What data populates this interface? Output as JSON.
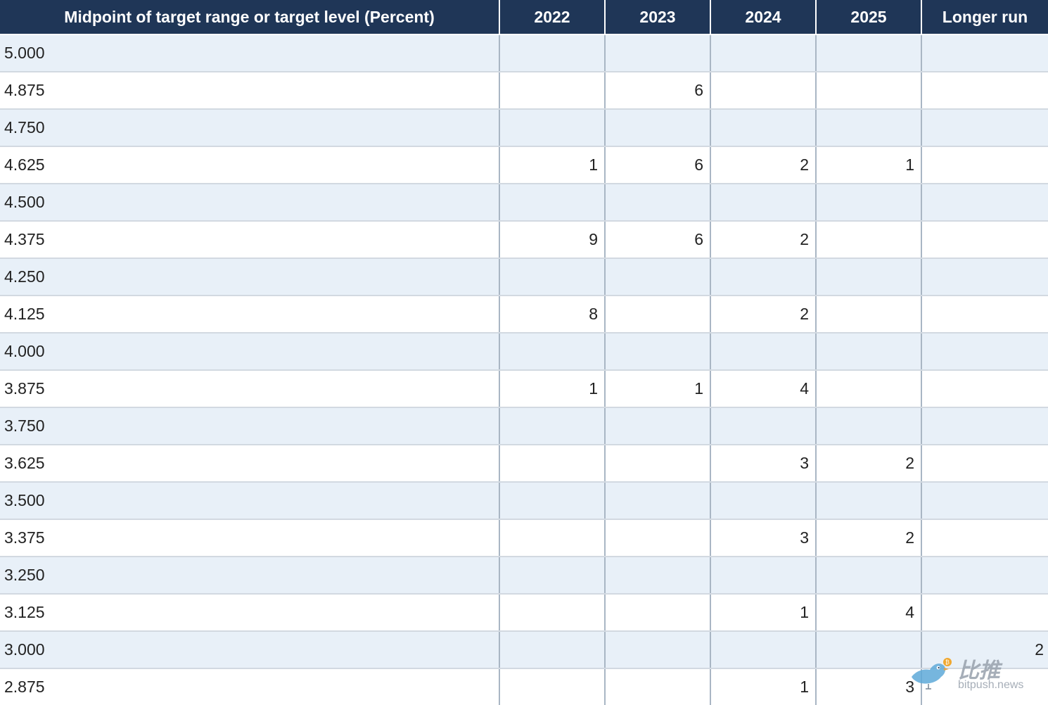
{
  "chart_data": {
    "type": "table",
    "columns": [
      "Midpoint of target range or target level (Percent)",
      "2022",
      "2023",
      "2024",
      "2025",
      "Longer run"
    ],
    "rows": [
      {
        "level": "5.000",
        "values": [
          "",
          "",
          "",
          "",
          ""
        ]
      },
      {
        "level": "4.875",
        "values": [
          "",
          "6",
          "",
          "",
          ""
        ]
      },
      {
        "level": "4.750",
        "values": [
          "",
          "",
          "",
          "",
          ""
        ]
      },
      {
        "level": "4.625",
        "values": [
          "1",
          "6",
          "2",
          "1",
          ""
        ]
      },
      {
        "level": "4.500",
        "values": [
          "",
          "",
          "",
          "",
          ""
        ]
      },
      {
        "level": "4.375",
        "values": [
          "9",
          "6",
          "2",
          "",
          ""
        ]
      },
      {
        "level": "4.250",
        "values": [
          "",
          "",
          "",
          "",
          ""
        ]
      },
      {
        "level": "4.125",
        "values": [
          "8",
          "",
          "2",
          "",
          ""
        ]
      },
      {
        "level": "4.000",
        "values": [
          "",
          "",
          "",
          "",
          ""
        ]
      },
      {
        "level": "3.875",
        "values": [
          "1",
          "1",
          "4",
          "",
          ""
        ]
      },
      {
        "level": "3.750",
        "values": [
          "",
          "",
          "",
          "",
          ""
        ]
      },
      {
        "level": "3.625",
        "values": [
          "",
          "",
          "3",
          "2",
          ""
        ]
      },
      {
        "level": "3.500",
        "values": [
          "",
          "",
          "",
          "",
          ""
        ]
      },
      {
        "level": "3.375",
        "values": [
          "",
          "",
          "3",
          "2",
          ""
        ]
      },
      {
        "level": "3.250",
        "values": [
          "",
          "",
          "",
          "",
          ""
        ]
      },
      {
        "level": "3.125",
        "values": [
          "",
          "",
          "1",
          "4",
          ""
        ]
      },
      {
        "level": "3.000",
        "values": [
          "",
          "",
          "",
          "",
          "2"
        ]
      },
      {
        "level": "2.875",
        "values": [
          "",
          "",
          "1",
          "3",
          ""
        ]
      }
    ]
  },
  "colors": {
    "header_bg": "#1f3657",
    "header_text": "#ffffff",
    "row_stripe": "#e8f0f8",
    "row_plain": "#ffffff",
    "column_divider": "#a9b6c4"
  },
  "watermark": {
    "text_cn": "比推",
    "text_url": "bitpush.news",
    "icon": "bird-logo-icon"
  }
}
